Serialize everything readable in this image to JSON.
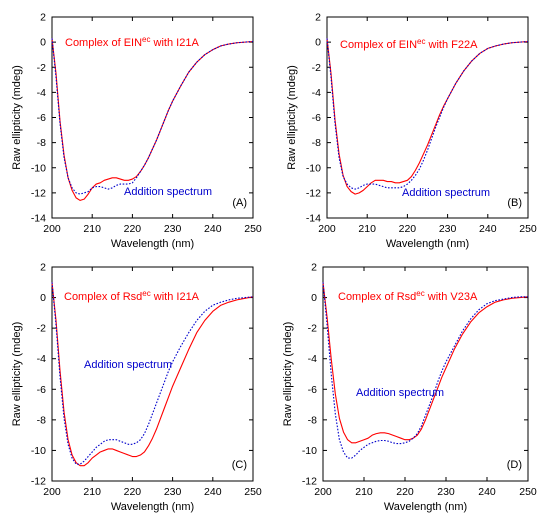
{
  "chart_data": [
    {
      "type": "line",
      "panel_label": "(A)",
      "xlabel": "Wavelength (nm)",
      "ylabel": "Raw ellipticity (mdeg)",
      "xlim": [
        200,
        250
      ],
      "ylim": [
        -14,
        2
      ],
      "x_ticks": [
        200,
        210,
        220,
        230,
        240,
        250
      ],
      "y_ticks": [
        2,
        0,
        -2,
        -4,
        -6,
        -8,
        -10,
        -12,
        -14
      ],
      "grid": false,
      "annotations": [
        {
          "text": "Complex of EIN",
          "sup": "ec",
          "text_after": " with I21A",
          "color": "#ff0000"
        },
        {
          "text": "Addition spectrum",
          "sup": "",
          "text_after": "",
          "color": "#0000cc"
        }
      ],
      "series": [
        {
          "color": "#ff0000",
          "style": "solid",
          "x": [
            200,
            201,
            202,
            203,
            204,
            205,
            206,
            207,
            208,
            209,
            210,
            211,
            212,
            213,
            214,
            215,
            216,
            217,
            218,
            219,
            220,
            221,
            222,
            223,
            224,
            225,
            226,
            227,
            228,
            229,
            230,
            232,
            234,
            236,
            238,
            240,
            242,
            244,
            246,
            248,
            250
          ],
          "y": [
            0.3,
            -2.5,
            -6.3,
            -9.0,
            -10.8,
            -11.8,
            -12.4,
            -12.6,
            -12.5,
            -12.1,
            -11.6,
            -11.3,
            -11.2,
            -11.0,
            -10.9,
            -10.8,
            -10.8,
            -10.9,
            -11.0,
            -11.0,
            -10.9,
            -10.7,
            -10.3,
            -9.8,
            -9.2,
            -8.5,
            -7.8,
            -7.0,
            -6.2,
            -5.4,
            -4.7,
            -3.5,
            -2.4,
            -1.6,
            -1.0,
            -0.6,
            -0.3,
            -0.15,
            -0.05,
            0.0,
            0.05
          ]
        },
        {
          "color": "#0000cc",
          "style": "dotted",
          "x": [
            200,
            201,
            202,
            203,
            204,
            205,
            206,
            207,
            208,
            209,
            210,
            211,
            212,
            213,
            214,
            215,
            216,
            217,
            218,
            219,
            220,
            221,
            222,
            223,
            224,
            225,
            226,
            227,
            228,
            229,
            230,
            232,
            234,
            236,
            238,
            240,
            242,
            244,
            246,
            248,
            250
          ],
          "y": [
            0.3,
            -2.8,
            -6.5,
            -9.2,
            -10.8,
            -11.6,
            -12.0,
            -12.1,
            -12.0,
            -11.9,
            -11.6,
            -11.5,
            -11.5,
            -11.6,
            -11.7,
            -11.6,
            -11.4,
            -11.3,
            -11.3,
            -11.3,
            -11.2,
            -10.8,
            -10.3,
            -9.8,
            -9.2,
            -8.5,
            -7.8,
            -7.0,
            -6.2,
            -5.4,
            -4.7,
            -3.5,
            -2.4,
            -1.6,
            -1.0,
            -0.6,
            -0.3,
            -0.15,
            -0.05,
            0.0,
            0.05
          ]
        }
      ]
    },
    {
      "type": "line",
      "panel_label": "(B)",
      "xlabel": "Wavelength (nm)",
      "ylabel": "Raw ellipticity (mdeg)",
      "xlim": [
        200,
        250
      ],
      "ylim": [
        -14,
        2
      ],
      "x_ticks": [
        200,
        210,
        220,
        230,
        240,
        250
      ],
      "y_ticks": [
        2,
        0,
        -2,
        -4,
        -6,
        -8,
        -10,
        -12,
        -14
      ],
      "grid": false,
      "annotations": [
        {
          "text": "Complex of EIN",
          "sup": "ec",
          "text_after": " with F22A",
          "color": "#ff0000"
        },
        {
          "text": "Addition spectrum",
          "sup": "",
          "text_after": "",
          "color": "#0000cc"
        }
      ],
      "series": [
        {
          "color": "#ff0000",
          "style": "solid",
          "x": [
            200,
            201,
            202,
            203,
            204,
            205,
            206,
            207,
            208,
            209,
            210,
            211,
            212,
            213,
            214,
            215,
            216,
            217,
            218,
            219,
            220,
            221,
            222,
            223,
            224,
            225,
            226,
            227,
            228,
            229,
            230,
            232,
            234,
            236,
            238,
            240,
            242,
            244,
            246,
            248,
            250
          ],
          "y": [
            0.3,
            -2.5,
            -6.2,
            -8.9,
            -10.6,
            -11.5,
            -11.9,
            -12.1,
            -12.0,
            -11.8,
            -11.5,
            -11.2,
            -11.0,
            -11.0,
            -11.0,
            -11.1,
            -11.1,
            -11.2,
            -11.2,
            -11.1,
            -11.0,
            -10.7,
            -10.2,
            -9.6,
            -8.9,
            -8.2,
            -7.4,
            -6.6,
            -5.8,
            -5.1,
            -4.5,
            -3.3,
            -2.3,
            -1.5,
            -0.9,
            -0.5,
            -0.3,
            -0.15,
            -0.05,
            0.0,
            0.05
          ]
        },
        {
          "color": "#0000cc",
          "style": "dotted",
          "x": [
            200,
            201,
            202,
            203,
            204,
            205,
            206,
            207,
            208,
            209,
            210,
            211,
            212,
            213,
            214,
            215,
            216,
            217,
            218,
            219,
            220,
            221,
            222,
            223,
            224,
            225,
            226,
            227,
            228,
            229,
            230,
            232,
            234,
            236,
            238,
            240,
            242,
            244,
            246,
            248,
            250
          ],
          "y": [
            0.3,
            -2.8,
            -6.5,
            -9.2,
            -10.7,
            -11.3,
            -11.6,
            -11.7,
            -11.6,
            -11.4,
            -11.3,
            -11.3,
            -11.3,
            -11.4,
            -11.5,
            -11.6,
            -11.6,
            -11.6,
            -11.6,
            -11.5,
            -11.3,
            -11.0,
            -10.6,
            -10.1,
            -9.4,
            -8.6,
            -7.7,
            -6.8,
            -6.0,
            -5.2,
            -4.5,
            -3.3,
            -2.3,
            -1.5,
            -0.9,
            -0.5,
            -0.3,
            -0.15,
            -0.05,
            0.0,
            0.05
          ]
        }
      ]
    },
    {
      "type": "line",
      "panel_label": "(C)",
      "xlabel": "Wavelength (nm)",
      "ylabel": "Raw ellipticity (mdeg)",
      "xlim": [
        200,
        250
      ],
      "ylim": [
        -12,
        2
      ],
      "x_ticks": [
        200,
        210,
        220,
        230,
        240,
        250
      ],
      "y_ticks": [
        2,
        0,
        -2,
        -4,
        -6,
        -8,
        -10,
        -12
      ],
      "grid": false,
      "annotations": [
        {
          "text": "Complex of Rsd",
          "sup": "ec",
          "text_after": " with I21A",
          "color": "#ff0000"
        },
        {
          "text": "Addition spectrum",
          "sup": "",
          "text_after": "",
          "color": "#0000cc"
        }
      ],
      "series": [
        {
          "color": "#ff0000",
          "style": "solid",
          "x": [
            200,
            201,
            202,
            203,
            204,
            205,
            206,
            207,
            208,
            209,
            210,
            211,
            212,
            213,
            214,
            215,
            216,
            217,
            218,
            219,
            220,
            221,
            222,
            223,
            224,
            225,
            226,
            227,
            228,
            229,
            230,
            232,
            234,
            236,
            238,
            240,
            242,
            244,
            246,
            248,
            250
          ],
          "y": [
            1.0,
            -1.5,
            -4.8,
            -7.5,
            -9.3,
            -10.3,
            -10.8,
            -11.0,
            -11.0,
            -10.8,
            -10.5,
            -10.3,
            -10.1,
            -10.0,
            -9.9,
            -9.9,
            -10.0,
            -10.1,
            -10.2,
            -10.3,
            -10.4,
            -10.4,
            -10.3,
            -10.1,
            -9.7,
            -9.2,
            -8.6,
            -7.9,
            -7.2,
            -6.5,
            -5.8,
            -4.6,
            -3.4,
            -2.3,
            -1.5,
            -0.9,
            -0.5,
            -0.3,
            -0.15,
            -0.05,
            0.05
          ]
        },
        {
          "color": "#0000cc",
          "style": "dotted",
          "x": [
            200,
            201,
            202,
            203,
            204,
            205,
            206,
            207,
            208,
            209,
            210,
            211,
            212,
            213,
            214,
            215,
            216,
            217,
            218,
            219,
            220,
            221,
            222,
            223,
            224,
            225,
            226,
            227,
            228,
            229,
            230,
            232,
            234,
            236,
            238,
            240,
            242,
            244,
            246,
            248,
            250
          ],
          "y": [
            1.0,
            -1.8,
            -5.2,
            -7.9,
            -9.6,
            -10.5,
            -10.9,
            -10.9,
            -10.7,
            -10.4,
            -10.1,
            -9.8,
            -9.6,
            -9.4,
            -9.3,
            -9.3,
            -9.3,
            -9.4,
            -9.5,
            -9.6,
            -9.6,
            -9.5,
            -9.3,
            -8.9,
            -8.3,
            -7.6,
            -6.9,
            -6.2,
            -5.5,
            -4.8,
            -4.2,
            -3.2,
            -2.3,
            -1.5,
            -0.9,
            -0.5,
            -0.3,
            -0.15,
            -0.05,
            0.0,
            0.05
          ]
        }
      ]
    },
    {
      "type": "line",
      "panel_label": "(D)",
      "xlabel": "Wavelength (nm)",
      "ylabel": "Raw ellipticity (mdeg)",
      "xlim": [
        200,
        250
      ],
      "ylim": [
        -12,
        2
      ],
      "x_ticks": [
        200,
        210,
        220,
        230,
        240,
        250
      ],
      "y_ticks": [
        2,
        0,
        -2,
        -4,
        -6,
        -8,
        -10,
        -12
      ],
      "grid": false,
      "annotations": [
        {
          "text": "Complex of Rsd",
          "sup": "ec",
          "text_after": " with V23A",
          "color": "#ff0000"
        },
        {
          "text": "Addition spectrum",
          "sup": "",
          "text_after": "",
          "color": "#0000cc"
        }
      ],
      "series": [
        {
          "color": "#ff0000",
          "style": "solid",
          "x": [
            200,
            201,
            202,
            203,
            204,
            205,
            206,
            207,
            208,
            209,
            210,
            211,
            212,
            213,
            214,
            215,
            216,
            217,
            218,
            219,
            220,
            221,
            222,
            223,
            224,
            225,
            226,
            227,
            228,
            229,
            230,
            232,
            234,
            236,
            238,
            240,
            242,
            244,
            246,
            248,
            250
          ],
          "y": [
            1.0,
            -1.3,
            -4.0,
            -6.3,
            -7.9,
            -8.8,
            -9.3,
            -9.5,
            -9.5,
            -9.4,
            -9.3,
            -9.2,
            -9.0,
            -8.9,
            -8.85,
            -8.85,
            -8.9,
            -9.0,
            -9.1,
            -9.2,
            -9.3,
            -9.3,
            -9.2,
            -9.0,
            -8.6,
            -8.0,
            -7.3,
            -6.6,
            -5.9,
            -5.2,
            -4.6,
            -3.4,
            -2.4,
            -1.6,
            -1.0,
            -0.6,
            -0.3,
            -0.15,
            -0.05,
            0.0,
            0.05
          ]
        },
        {
          "color": "#0000cc",
          "style": "dotted",
          "x": [
            200,
            201,
            202,
            203,
            204,
            205,
            206,
            207,
            208,
            209,
            210,
            211,
            212,
            213,
            214,
            215,
            216,
            217,
            218,
            219,
            220,
            221,
            222,
            223,
            224,
            225,
            226,
            227,
            228,
            229,
            230,
            232,
            234,
            236,
            238,
            240,
            242,
            244,
            246,
            248,
            250
          ],
          "y": [
            1.0,
            -1.8,
            -5.0,
            -7.6,
            -9.3,
            -10.1,
            -10.5,
            -10.5,
            -10.3,
            -10.0,
            -9.8,
            -9.6,
            -9.5,
            -9.4,
            -9.35,
            -9.35,
            -9.4,
            -9.5,
            -9.55,
            -9.55,
            -9.5,
            -9.4,
            -9.2,
            -8.9,
            -8.4,
            -7.7,
            -7.0,
            -6.3,
            -5.5,
            -4.8,
            -4.2,
            -3.2,
            -2.2,
            -1.4,
            -0.8,
            -0.4,
            -0.2,
            -0.1,
            0.0,
            0.05,
            0.05
          ]
        }
      ]
    }
  ]
}
